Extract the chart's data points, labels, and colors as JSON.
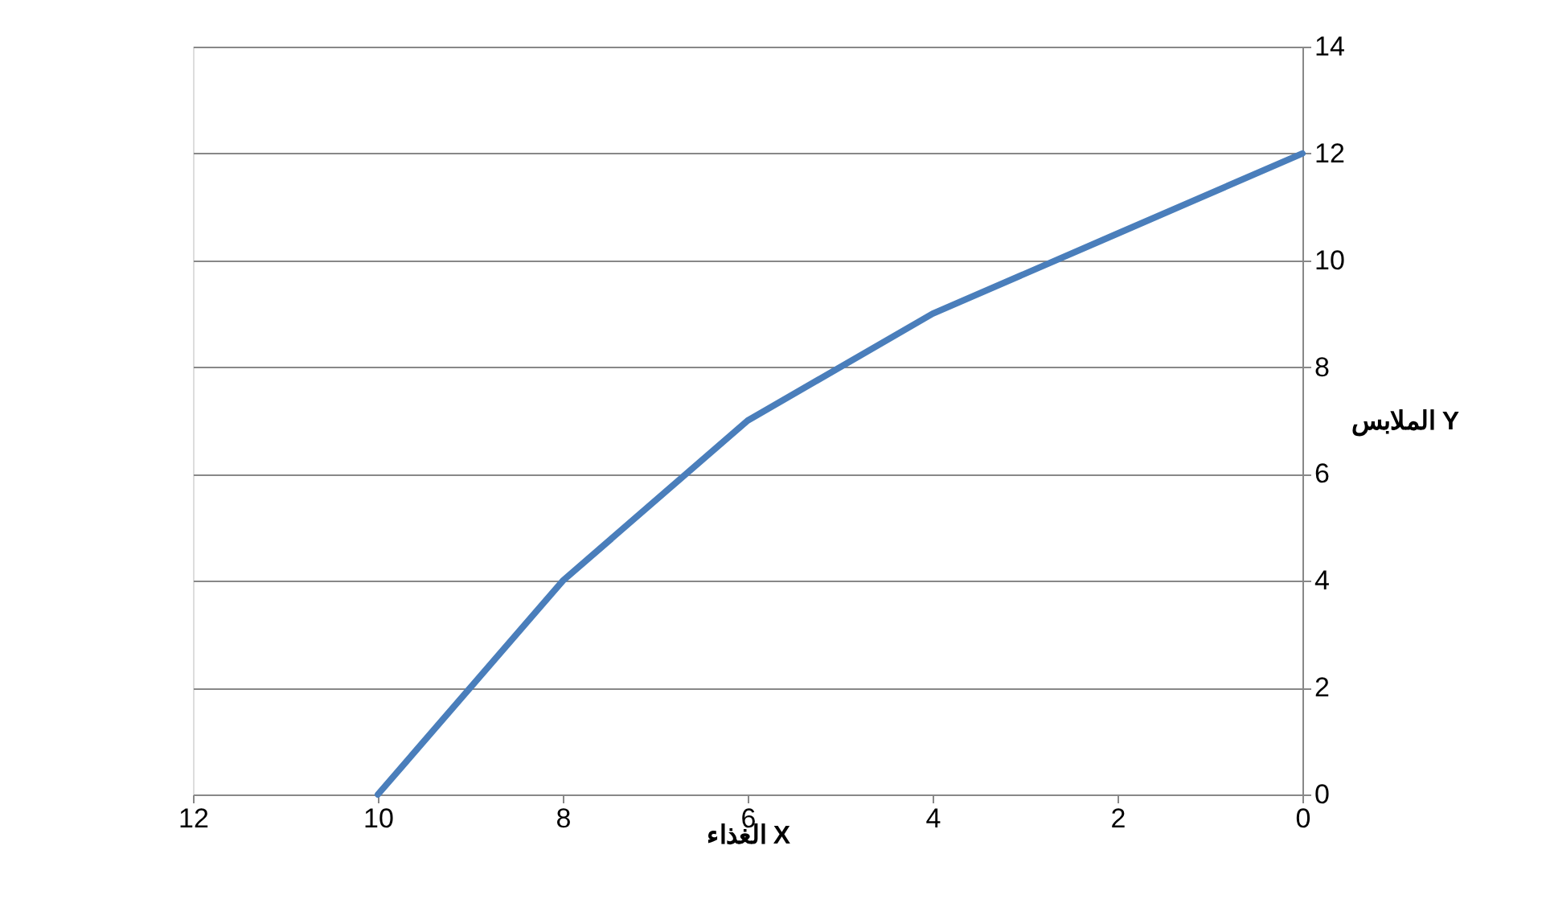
{
  "chart_data": {
    "type": "line",
    "xlabel": "الغذاء X",
    "ylabel": "الملابس Y",
    "x": [
      10,
      8,
      6,
      4,
      2,
      0
    ],
    "series": [
      {
        "color": "#4a7ebb",
        "values": [
          0,
          4,
          7,
          9,
          10.5,
          12
        ]
      }
    ],
    "xlim": [
      12,
      0
    ],
    "xticks": [
      12,
      10,
      8,
      6,
      4,
      2,
      0
    ],
    "ylim": [
      0,
      14
    ],
    "yticks": [
      0,
      2,
      4,
      6,
      8,
      10,
      12,
      14
    ],
    "grid": "y",
    "marker": "none",
    "line_style": "solid"
  }
}
